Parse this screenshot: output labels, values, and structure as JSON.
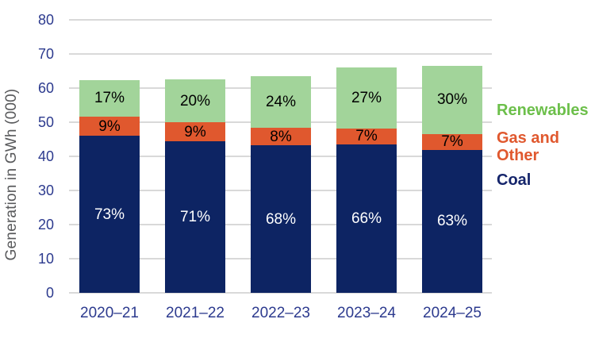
{
  "chart_data": {
    "type": "bar",
    "variant": "stacked",
    "title": "",
    "xlabel": "",
    "ylabel": "Generation in GWh (000)",
    "ylim": [
      0,
      80
    ],
    "y_ticks": [
      0,
      10,
      20,
      30,
      40,
      50,
      60,
      70,
      80
    ],
    "grid": "horizontal",
    "legend_position": "right",
    "categories": [
      "2020–21",
      "2021–22",
      "2022–23",
      "2023–24",
      "2024–25"
    ],
    "totals_gwh_000": [
      63,
      62.5,
      63.5,
      66,
      66.5
    ],
    "series": [
      {
        "name": "Coal",
        "color": "#0d2463",
        "label_color": "#ffffff",
        "percentages": [
          73,
          71,
          68,
          66,
          63
        ],
        "labels": [
          "73%",
          "71%",
          "68%",
          "66%",
          "63%"
        ]
      },
      {
        "name": "Gas and Other",
        "color": "#e0582e",
        "label_color": "#000000",
        "percentages": [
          9,
          9,
          8,
          7,
          7
        ],
        "labels": [
          "9%",
          "9%",
          "8%",
          "7%",
          "7%"
        ]
      },
      {
        "name": "Renewables",
        "color": "#a2d49a",
        "label_color": "#000000",
        "percentages": [
          17,
          20,
          24,
          27,
          30
        ],
        "labels": [
          "17%",
          "20%",
          "24%",
          "27%",
          "30%"
        ]
      }
    ],
    "legend": {
      "items": [
        {
          "label": "Renewables",
          "text_color": "#6cbf4a"
        },
        {
          "label": "Gas and Other",
          "text_color": "#e0582e"
        },
        {
          "label": "Coal",
          "text_color": "#15256b"
        }
      ]
    },
    "axis_text_color": "#2c3a8e",
    "gridline_color": "#d9d9d9",
    "ylabel_color": "#58595b"
  }
}
